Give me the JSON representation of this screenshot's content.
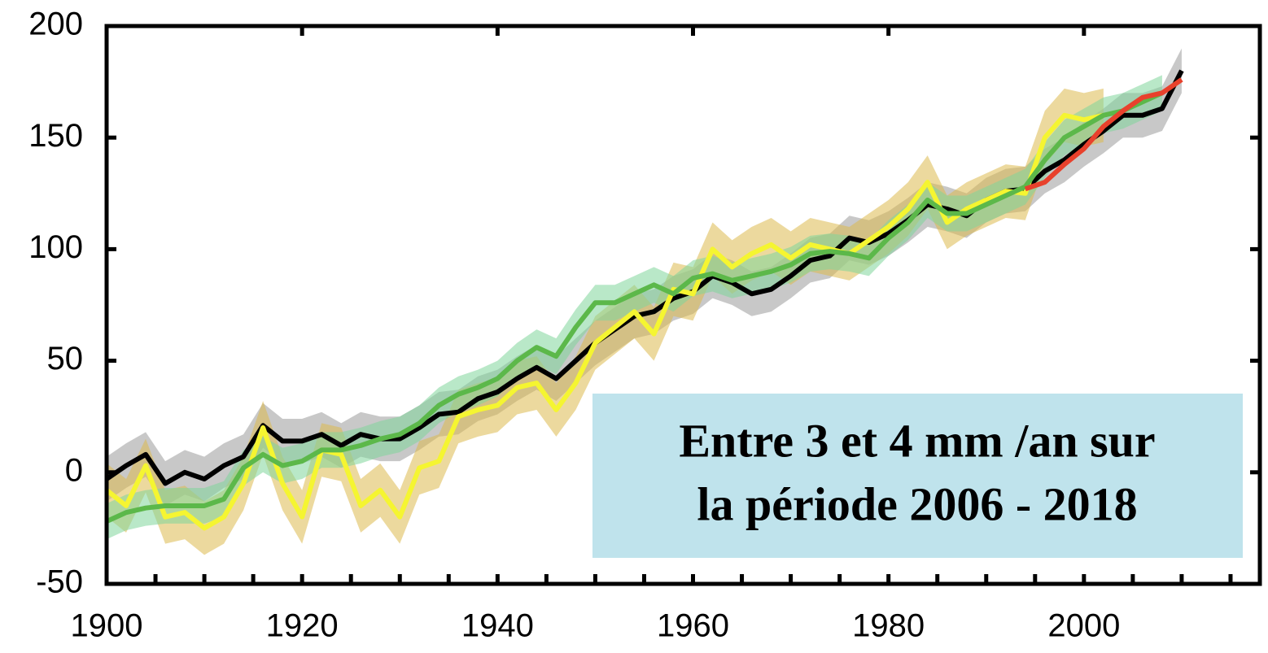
{
  "chart_data": {
    "type": "line",
    "annotation": [
      "Entre 3 et 4 mm /an sur",
      "la période 2006 - 2018"
    ],
    "x": [
      1900,
      1902,
      1904,
      1906,
      1908,
      1910,
      1912,
      1914,
      1916,
      1918,
      1920,
      1922,
      1924,
      1926,
      1928,
      1930,
      1932,
      1934,
      1936,
      1938,
      1940,
      1942,
      1944,
      1946,
      1948,
      1950,
      1952,
      1954,
      1956,
      1958,
      1960,
      1962,
      1964,
      1966,
      1968,
      1970,
      1972,
      1974,
      1976,
      1978,
      1980,
      1982,
      1984,
      1986,
      1988,
      1990,
      1992,
      1994,
      1996,
      1998,
      2000,
      2002,
      2004,
      2006,
      2008,
      2010
    ],
    "series": [
      {
        "color": "#000000",
        "band_color": "#9a9a9a",
        "band": 10,
        "values": [
          -3,
          3,
          8,
          -5,
          0,
          -3,
          3,
          7,
          21,
          14,
          14,
          17,
          12,
          17,
          15,
          15,
          20,
          26,
          27,
          33,
          36,
          42,
          47,
          42,
          50,
          58,
          64,
          70,
          72,
          78,
          81,
          88,
          85,
          80,
          82,
          88,
          95,
          97,
          105,
          103,
          107,
          113,
          120,
          118,
          115,
          122,
          126,
          127,
          135,
          140,
          147,
          153,
          160,
          160,
          163,
          180
        ]
      },
      {
        "color": "#f5f531",
        "band_color": "#dcb94e",
        "band": 12,
        "values": [
          -8,
          -15,
          3,
          -20,
          -18,
          -25,
          -20,
          -5,
          20,
          -5,
          -20,
          10,
          8,
          -15,
          -8,
          -20,
          2,
          5,
          25,
          28,
          30,
          38,
          40,
          28,
          40,
          58,
          65,
          72,
          62,
          82,
          80,
          100,
          92,
          98,
          102,
          96,
          102,
          100,
          98,
          104,
          110,
          118,
          130,
          112,
          118,
          122,
          126,
          125,
          150,
          160,
          158,
          160,
          null,
          null,
          null,
          null
        ]
      },
      {
        "color": "#5cb84a",
        "band_color": "#7fd69a",
        "band": 8,
        "values": [
          -22,
          -18,
          -16,
          -15,
          -15,
          -15,
          -12,
          2,
          8,
          3,
          5,
          10,
          10,
          12,
          15,
          17,
          22,
          30,
          35,
          38,
          42,
          50,
          56,
          52,
          65,
          76,
          76,
          80,
          84,
          80,
          87,
          89,
          86,
          88,
          90,
          93,
          98,
          99,
          98,
          96,
          105,
          112,
          122,
          116,
          116,
          120,
          124,
          128,
          140,
          150,
          155,
          160,
          162,
          166,
          170,
          null
        ]
      },
      {
        "color": "#e8412c",
        "values": [
          null,
          null,
          null,
          null,
          null,
          null,
          null,
          null,
          null,
          null,
          null,
          null,
          null,
          null,
          null,
          null,
          null,
          null,
          null,
          null,
          null,
          null,
          null,
          null,
          null,
          null,
          null,
          null,
          null,
          null,
          null,
          null,
          null,
          null,
          null,
          null,
          null,
          null,
          null,
          null,
          null,
          null,
          null,
          null,
          null,
          null,
          null,
          127,
          130,
          138,
          145,
          155,
          162,
          168,
          170,
          176
        ]
      }
    ],
    "xlim": [
      1900,
      2018
    ],
    "ylim": [
      -50,
      200
    ],
    "xticks": [
      1900,
      1920,
      1940,
      1960,
      1980,
      2000
    ],
    "xminorticks": [
      1905,
      1910,
      1915,
      1925,
      1930,
      1935,
      1945,
      1950,
      1955,
      1965,
      1970,
      1975,
      1985,
      1990,
      1995,
      2005,
      2010,
      2015
    ],
    "yticks": [
      -50,
      0,
      50,
      100,
      150,
      200
    ],
    "annotation_color": "#bfe3ec"
  }
}
